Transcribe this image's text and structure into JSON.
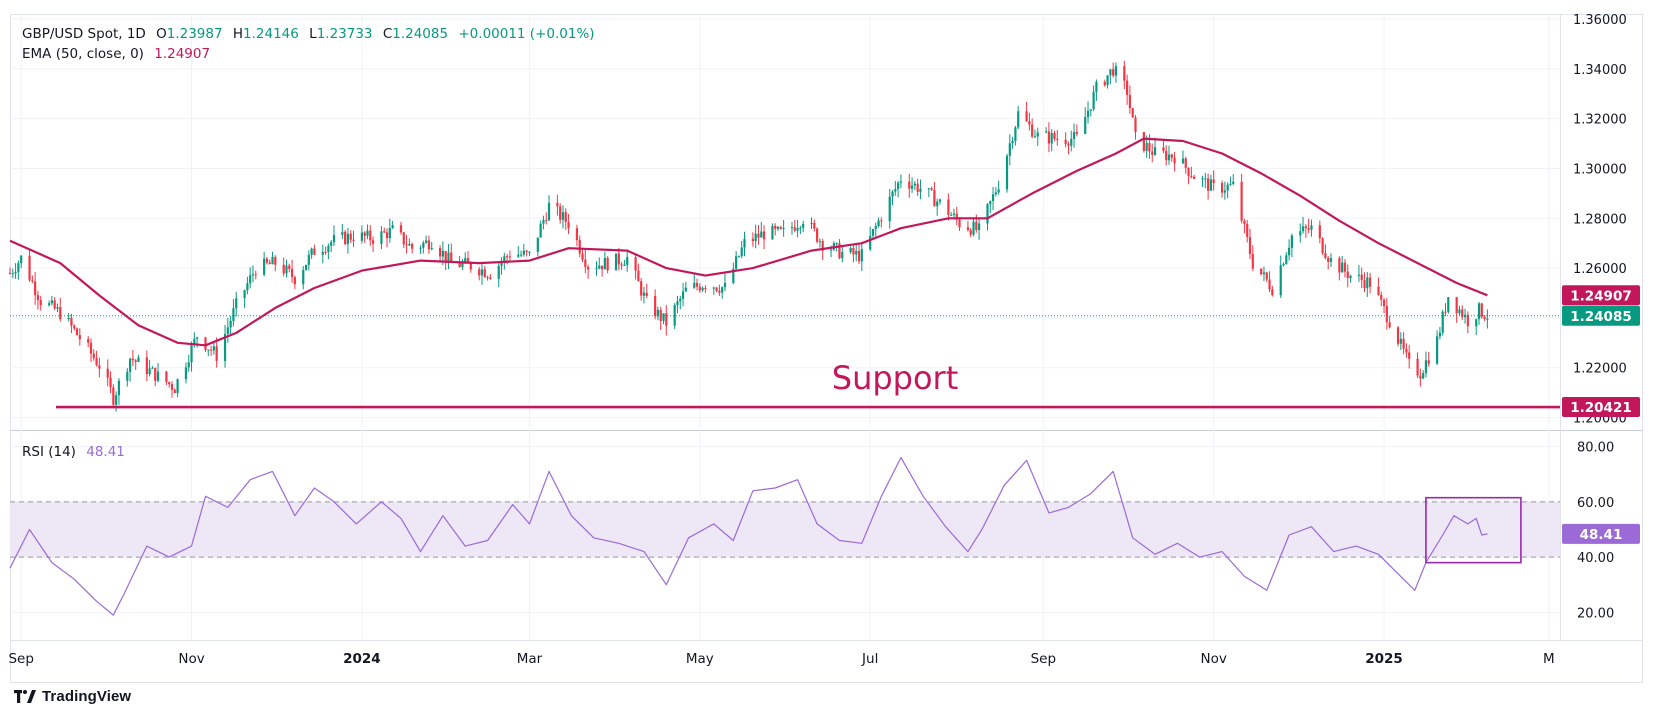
{
  "header": {
    "symbol": "GBP/USD Spot, 1D",
    "open_label": "O",
    "open_value": "1.23987",
    "high_label": "H",
    "high_value": "1.24146",
    "low_label": "L",
    "low_value": "1.23733",
    "close_label": "C",
    "close_value": "1.24085",
    "change": "+0.00011 (+0.01%)",
    "ema_label": "EMA (50, close, 0)",
    "ema_value": "1.24907",
    "rsi_label": "RSI (14)",
    "rsi_value": "48.41"
  },
  "colors": {
    "up": "#089981",
    "down": "#f23645",
    "ema": "#c2185b",
    "support": "#c2185b",
    "rsi": "#9c6ad6",
    "rsi_band": "#ede7f6",
    "box": "#9c27b0",
    "text": "#131722"
  },
  "brand": "TradingView",
  "chart_data": [
    {
      "type": "candlestick",
      "panel": "price",
      "title": "GBP/USD Spot, 1D",
      "ylim": [
        1.195,
        1.362
      ],
      "y_ticks": [
        "1.36000",
        "1.34000",
        "1.32000",
        "1.30000",
        "1.28000",
        "1.26000",
        "1.24000",
        "1.22000",
        "1.20000"
      ],
      "x_ticks": [
        "Sep",
        "Nov",
        "2024",
        "Mar",
        "May",
        "Jul",
        "Sep",
        "Nov",
        "2025",
        "M"
      ],
      "x_range": [
        "2023-08-28",
        "2025-03-05"
      ],
      "close_path": [
        [
          "2023-08-28",
          1.258
        ],
        [
          "2023-09-01",
          1.264
        ],
        [
          "2023-09-08",
          1.247
        ],
        [
          "2023-09-15",
          1.242
        ],
        [
          "2023-09-22",
          1.232
        ],
        [
          "2023-09-29",
          1.221
        ],
        [
          "2023-10-04",
          1.208
        ],
        [
          "2023-10-10",
          1.224
        ],
        [
          "2023-10-18",
          1.218
        ],
        [
          "2023-10-26",
          1.212
        ],
        [
          "2023-11-03",
          1.233
        ],
        [
          "2023-11-10",
          1.225
        ],
        [
          "2023-11-17",
          1.245
        ],
        [
          "2023-11-24",
          1.26
        ],
        [
          "2023-12-01",
          1.262
        ],
        [
          "2023-12-08",
          1.256
        ],
        [
          "2023-12-15",
          1.267
        ],
        [
          "2023-12-22",
          1.271
        ],
        [
          "2023-12-29",
          1.273
        ],
        [
          "2024-01-05",
          1.272
        ],
        [
          "2024-01-12",
          1.275
        ],
        [
          "2024-01-19",
          1.268
        ],
        [
          "2024-01-26",
          1.271
        ],
        [
          "2024-02-02",
          1.262
        ],
        [
          "2024-02-09",
          1.261
        ],
        [
          "2024-02-16",
          1.258
        ],
        [
          "2024-02-23",
          1.266
        ],
        [
          "2024-03-01",
          1.265
        ],
        [
          "2024-03-08",
          1.285
        ],
        [
          "2024-03-15",
          1.278
        ],
        [
          "2024-03-22",
          1.261
        ],
        [
          "2024-03-29",
          1.262
        ],
        [
          "2024-04-05",
          1.264
        ],
        [
          "2024-04-12",
          1.246
        ],
        [
          "2024-04-19",
          1.238
        ],
        [
          "2024-04-26",
          1.251
        ],
        [
          "2024-05-03",
          1.254
        ],
        [
          "2024-05-10",
          1.252
        ],
        [
          "2024-05-17",
          1.27
        ],
        [
          "2024-05-24",
          1.274
        ],
        [
          "2024-05-31",
          1.274
        ],
        [
          "2024-06-07",
          1.28
        ],
        [
          "2024-06-14",
          1.27
        ],
        [
          "2024-06-21",
          1.266
        ],
        [
          "2024-06-28",
          1.265
        ],
        [
          "2024-07-05",
          1.281
        ],
        [
          "2024-07-12",
          1.296
        ],
        [
          "2024-07-19",
          1.292
        ],
        [
          "2024-07-26",
          1.286
        ],
        [
          "2024-08-02",
          1.278
        ],
        [
          "2024-08-09",
          1.275
        ],
        [
          "2024-08-16",
          1.294
        ],
        [
          "2024-08-23",
          1.322
        ],
        [
          "2024-08-30",
          1.313
        ],
        [
          "2024-09-06",
          1.312
        ],
        [
          "2024-09-13",
          1.312
        ],
        [
          "2024-09-20",
          1.332
        ],
        [
          "2024-09-26",
          1.34
        ],
        [
          "2024-10-01",
          1.331
        ],
        [
          "2024-10-04",
          1.312
        ],
        [
          "2024-10-11",
          1.306
        ],
        [
          "2024-10-18",
          1.305
        ],
        [
          "2024-10-25",
          1.297
        ],
        [
          "2024-11-01",
          1.292
        ],
        [
          "2024-11-08",
          1.293
        ],
        [
          "2024-11-15",
          1.262
        ],
        [
          "2024-11-22",
          1.252
        ],
        [
          "2024-11-29",
          1.273
        ],
        [
          "2024-12-06",
          1.276
        ],
        [
          "2024-12-13",
          1.263
        ],
        [
          "2024-12-20",
          1.257
        ],
        [
          "2024-12-27",
          1.254
        ],
        [
          "2025-01-03",
          1.239
        ],
        [
          "2025-01-10",
          1.221
        ],
        [
          "2025-01-14",
          1.218
        ],
        [
          "2025-01-20",
          1.231
        ],
        [
          "2025-01-24",
          1.249
        ],
        [
          "2025-01-31",
          1.239
        ],
        [
          "2025-02-04",
          1.243
        ],
        [
          "2025-02-07",
          1.241
        ]
      ],
      "series": [
        {
          "name": "EMA (50, close, 0)",
          "last_value": 1.24907,
          "values": [
            [
              "2023-08-28",
              1.271
            ],
            [
              "2023-09-15",
              1.262
            ],
            [
              "2023-09-29",
              1.249
            ],
            [
              "2023-10-13",
              1.237
            ],
            [
              "2023-10-27",
              1.23
            ],
            [
              "2023-11-06",
              1.229
            ],
            [
              "2023-11-17",
              1.234
            ],
            [
              "2023-12-01",
              1.244
            ],
            [
              "2023-12-15",
              1.252
            ],
            [
              "2024-01-01",
              1.259
            ],
            [
              "2024-01-22",
              1.263
            ],
            [
              "2024-02-12",
              1.262
            ],
            [
              "2024-03-01",
              1.263
            ],
            [
              "2024-03-15",
              1.268
            ],
            [
              "2024-04-05",
              1.267
            ],
            [
              "2024-04-19",
              1.26
            ],
            [
              "2024-05-03",
              1.257
            ],
            [
              "2024-05-20",
              1.26
            ],
            [
              "2024-06-10",
              1.267
            ],
            [
              "2024-06-28",
              1.27
            ],
            [
              "2024-07-12",
              1.276
            ],
            [
              "2024-07-29",
              1.28
            ],
            [
              "2024-08-12",
              1.28
            ],
            [
              "2024-08-28",
              1.29
            ],
            [
              "2024-09-13",
              1.299
            ],
            [
              "2024-09-27",
              1.306
            ],
            [
              "2024-10-07",
              1.312
            ],
            [
              "2024-10-21",
              1.311
            ],
            [
              "2024-11-04",
              1.306
            ],
            [
              "2024-11-18",
              1.298
            ],
            [
              "2024-12-02",
              1.289
            ],
            [
              "2024-12-16",
              1.279
            ],
            [
              "2024-12-30",
              1.27
            ],
            [
              "2025-01-13",
              1.262
            ],
            [
              "2025-01-27",
              1.254
            ],
            [
              "2025-02-07",
              1.24907
            ]
          ]
        }
      ],
      "last_price": 1.24085,
      "price_label": "1.24085",
      "ema_label_value": "1.24907",
      "support_level": 1.20421,
      "support_label": "1.20421",
      "annotations": [
        "Support"
      ]
    },
    {
      "type": "line",
      "panel": "rsi",
      "title": "RSI (14)",
      "ylim": [
        10,
        86
      ],
      "y_ticks": [
        "80.00",
        "60.00",
        "40.00",
        "20.00"
      ],
      "band": [
        40,
        60
      ],
      "last_value": 48.41,
      "value_label": "48.41",
      "values": [
        [
          "2023-08-28",
          36
        ],
        [
          "2023-09-04",
          50
        ],
        [
          "2023-09-12",
          38
        ],
        [
          "2023-09-20",
          32
        ],
        [
          "2023-09-28",
          24
        ],
        [
          "2023-10-04",
          19
        ],
        [
          "2023-10-08",
          27
        ],
        [
          "2023-10-16",
          44
        ],
        [
          "2023-10-24",
          40
        ],
        [
          "2023-11-01",
          44
        ],
        [
          "2023-11-06",
          62
        ],
        [
          "2023-11-14",
          58
        ],
        [
          "2023-11-22",
          68
        ],
        [
          "2023-11-30",
          71
        ],
        [
          "2023-12-08",
          55
        ],
        [
          "2023-12-15",
          65
        ],
        [
          "2023-12-22",
          60
        ],
        [
          "2023-12-30",
          52
        ],
        [
          "2024-01-08",
          60
        ],
        [
          "2024-01-15",
          54
        ],
        [
          "2024-01-22",
          42
        ],
        [
          "2024-01-30",
          55
        ],
        [
          "2024-02-07",
          44
        ],
        [
          "2024-02-15",
          46
        ],
        [
          "2024-02-24",
          59
        ],
        [
          "2024-03-01",
          52
        ],
        [
          "2024-03-08",
          71
        ],
        [
          "2024-03-16",
          55
        ],
        [
          "2024-03-24",
          47
        ],
        [
          "2024-04-02",
          45
        ],
        [
          "2024-04-11",
          42
        ],
        [
          "2024-04-19",
          30
        ],
        [
          "2024-04-27",
          47
        ],
        [
          "2024-05-06",
          52
        ],
        [
          "2024-05-13",
          46
        ],
        [
          "2024-05-20",
          64
        ],
        [
          "2024-05-28",
          65
        ],
        [
          "2024-06-05",
          68
        ],
        [
          "2024-06-12",
          52
        ],
        [
          "2024-06-20",
          46
        ],
        [
          "2024-06-28",
          45
        ],
        [
          "2024-07-05",
          62
        ],
        [
          "2024-07-12",
          76
        ],
        [
          "2024-07-20",
          62
        ],
        [
          "2024-07-28",
          51
        ],
        [
          "2024-08-05",
          42
        ],
        [
          "2024-08-10",
          50
        ],
        [
          "2024-08-18",
          66
        ],
        [
          "2024-08-26",
          75
        ],
        [
          "2024-09-03",
          56
        ],
        [
          "2024-09-10",
          58
        ],
        [
          "2024-09-18",
          63
        ],
        [
          "2024-09-26",
          71
        ],
        [
          "2024-10-03",
          47
        ],
        [
          "2024-10-11",
          41
        ],
        [
          "2024-10-19",
          45
        ],
        [
          "2024-10-27",
          40
        ],
        [
          "2024-11-04",
          42
        ],
        [
          "2024-11-12",
          33
        ],
        [
          "2024-11-20",
          28
        ],
        [
          "2024-11-28",
          48
        ],
        [
          "2024-12-06",
          51
        ],
        [
          "2024-12-14",
          42
        ],
        [
          "2024-12-22",
          44
        ],
        [
          "2024-12-30",
          41
        ],
        [
          "2025-01-06",
          34
        ],
        [
          "2025-01-12",
          28
        ],
        [
          "2025-01-16",
          38
        ],
        [
          "2025-01-22",
          48
        ],
        [
          "2025-01-26",
          55
        ],
        [
          "2025-01-31",
          52
        ],
        [
          "2025-02-03",
          54
        ],
        [
          "2025-02-05",
          48
        ],
        [
          "2025-02-07",
          48.41
        ]
      ]
    }
  ]
}
